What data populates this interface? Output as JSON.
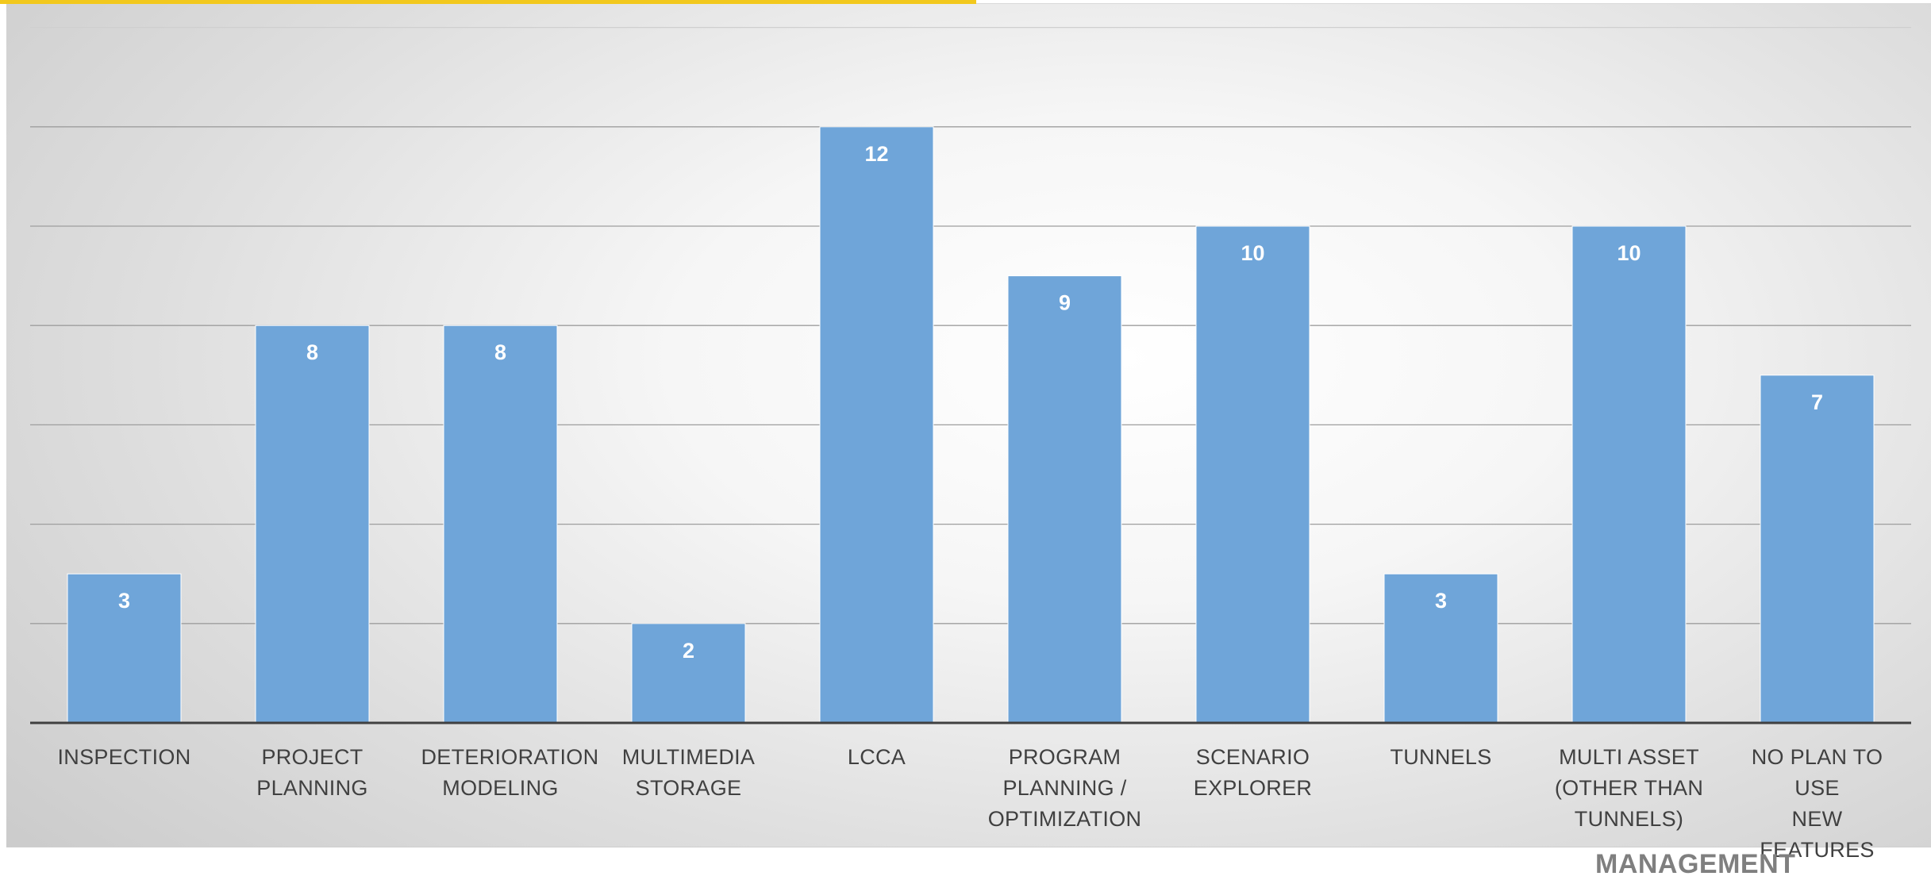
{
  "footer_text": "MANAGEMENT",
  "colors": {
    "bar": "#6fa5d9",
    "accent": "#f2c81d",
    "gridline": "#9e9e9e",
    "axis": "#404040",
    "data_label": "#ffffff"
  },
  "chart_data": {
    "type": "bar",
    "categories": [
      "INSPECTION",
      "PROJECT\nPLANNING",
      "DETERIORATION\nMODELING",
      "MULTIMEDIA\nSTORAGE",
      "LCCA",
      "PROGRAM\nPLANNING /\nOPTIMIZATION",
      "SCENARIO\nEXPLORER",
      "TUNNELS",
      "MULTI ASSET\n(OTHER THAN\nTUNNELS)",
      "NO PLAN TO USE\nNEW FEATURES"
    ],
    "values": [
      3,
      8,
      8,
      2,
      12,
      9,
      10,
      3,
      10,
      7
    ],
    "ylim": [
      0,
      14
    ],
    "grid": true,
    "data_labels": true,
    "title": "",
    "xlabel": "",
    "ylabel": ""
  }
}
